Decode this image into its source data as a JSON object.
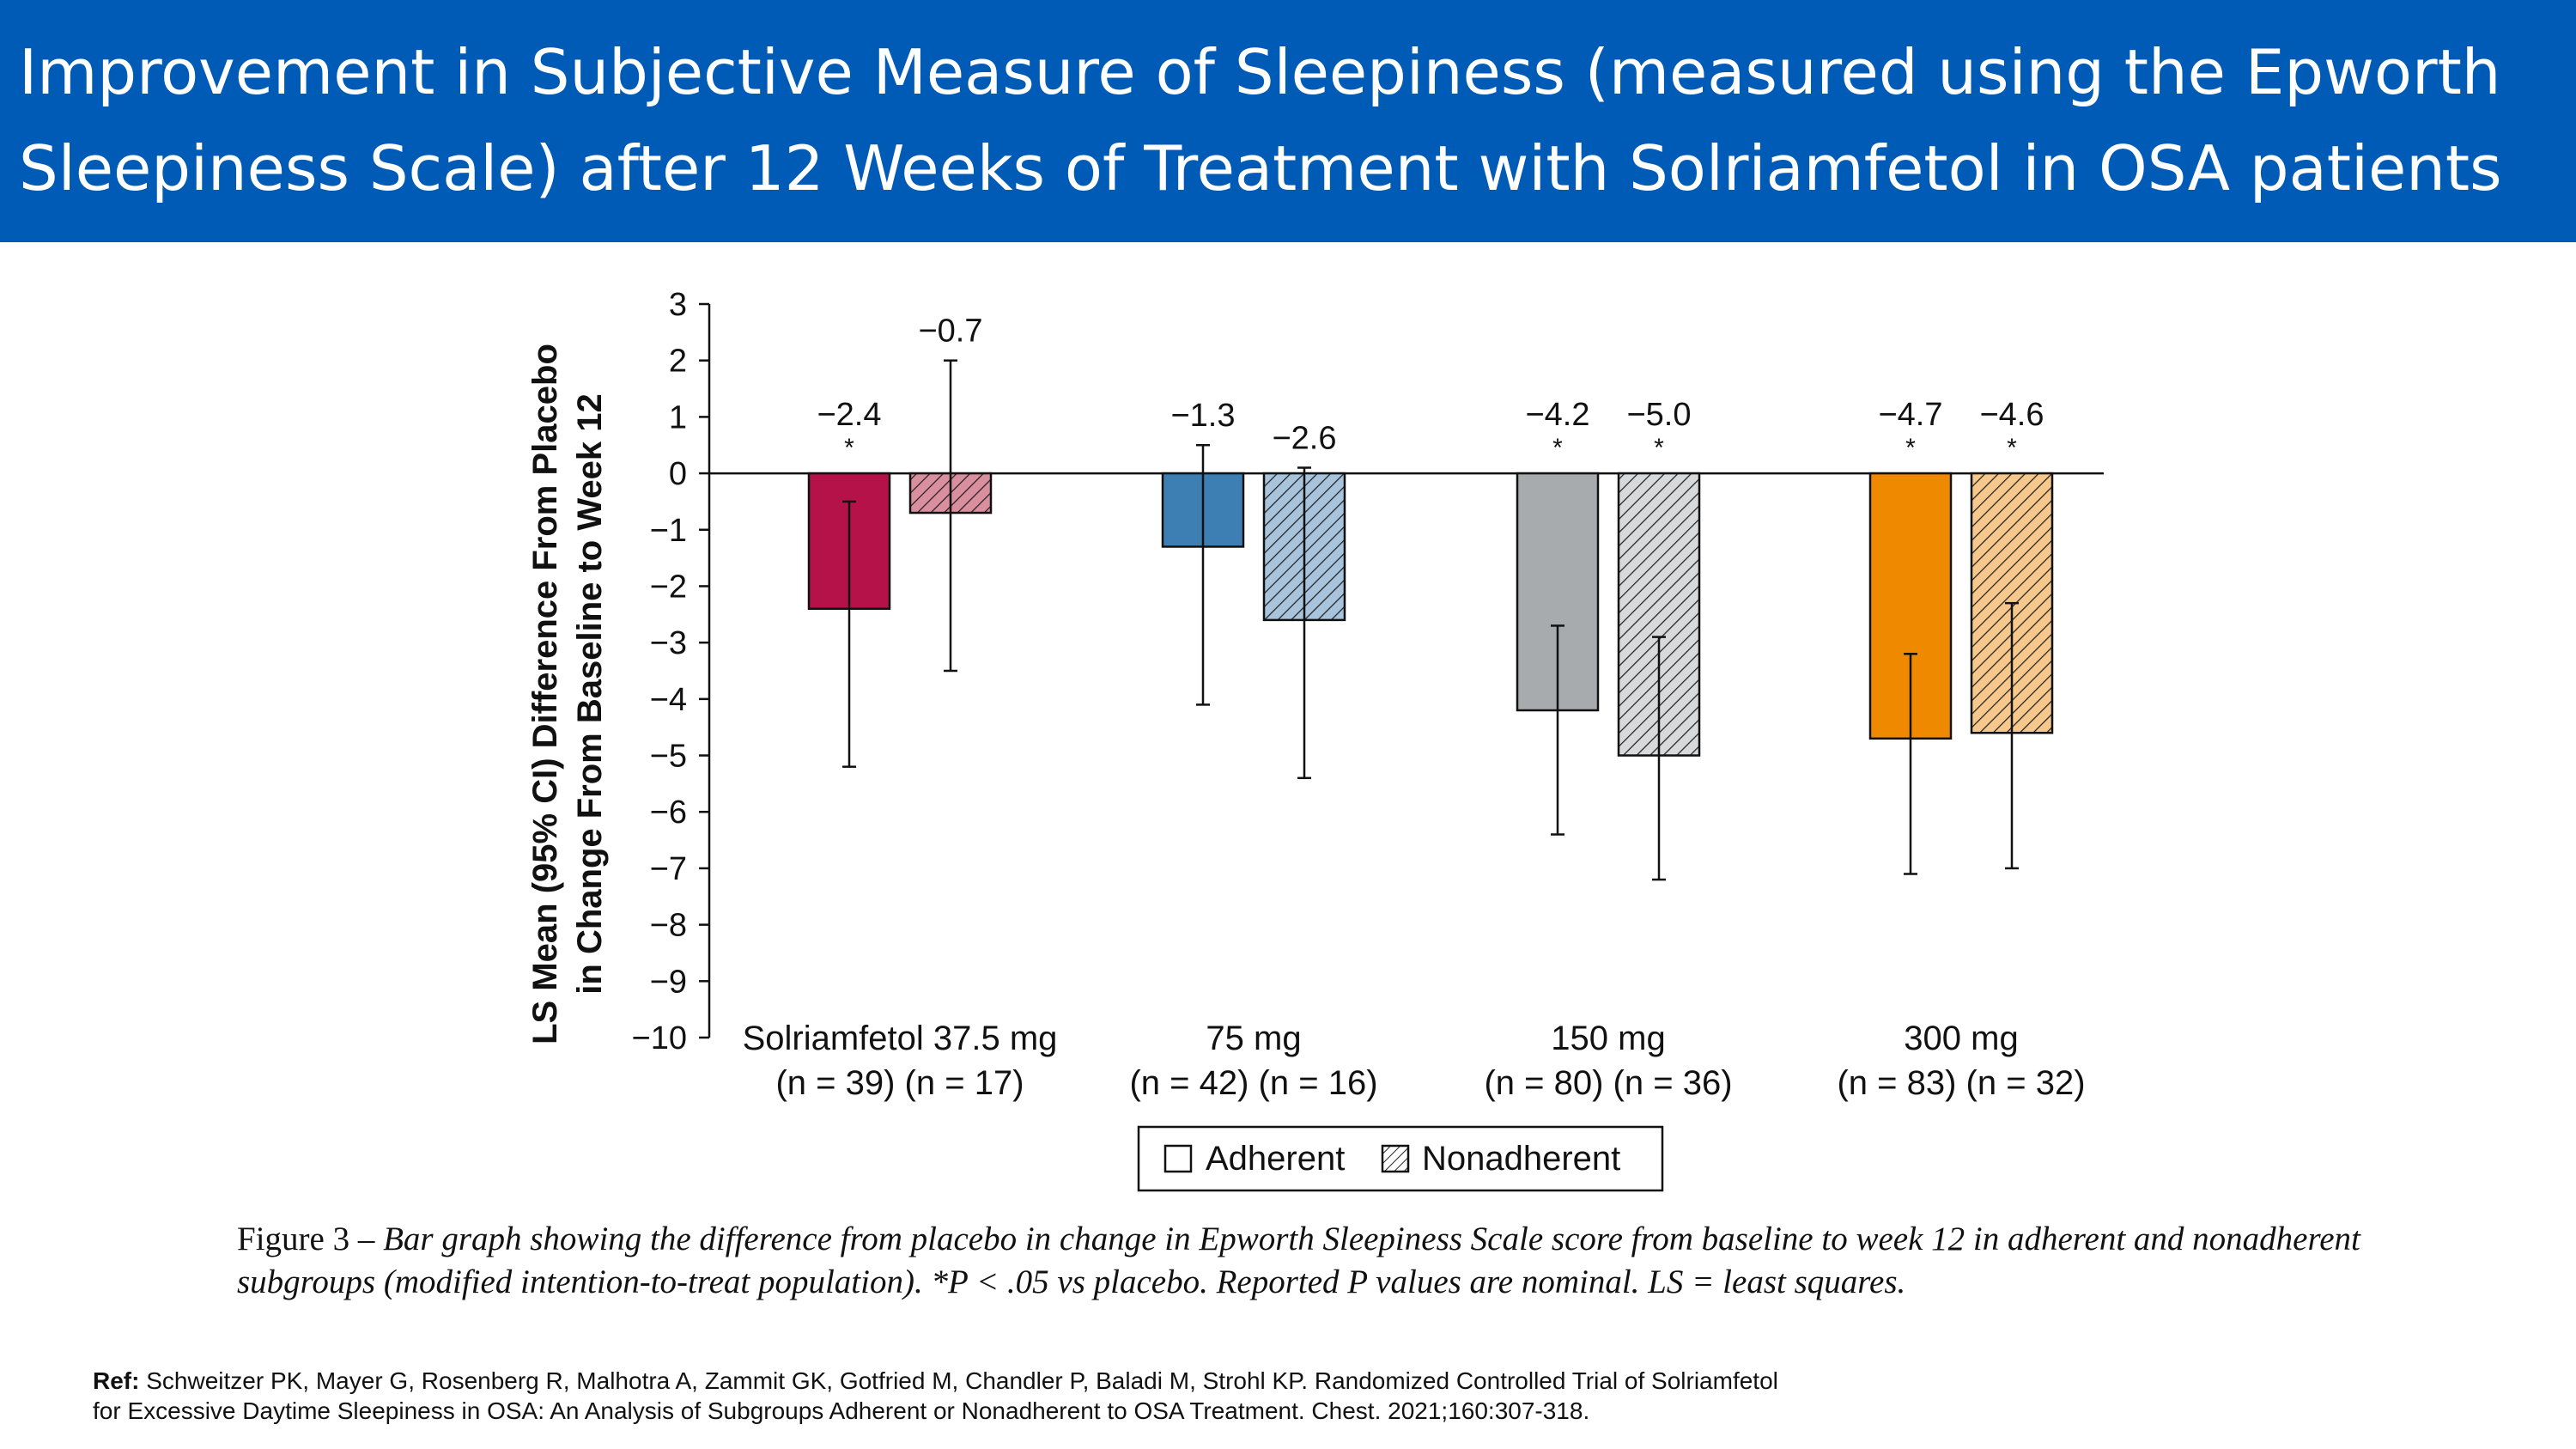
{
  "slide": {
    "title_line1": "Improvement in Subjective Measure of Sleepiness (measured using the Epworth",
    "title_line2": "Sleepiness Scale) after 12 Weeks of Treatment with Solriamfetol in OSA patients",
    "caption_prefix": "Figure 3 – ",
    "caption_text": "Bar graph showing the difference from placebo in change in Epworth Sleepiness Scale score from baseline to week 12 in adherent and nonadherent subgroups (modified intention-to-treat population). *P < .05 vs placebo. Reported P values are nominal. LS = least squares.",
    "ref_label": "Ref:",
    "ref_line1": "Schweitzer PK, Mayer G, Rosenberg R, Malhotra A, Zammit GK, Gotfried M, Chandler P, Baladi M, Strohl KP. Randomized Controlled Trial of Solriamfetol",
    "ref_line2": "for Excessive Daytime Sleepiness in OSA: An Analysis of Subgroups Adherent or Nonadherent to OSA Treatment. Chest. 2021;160:307-318.",
    "colors": {
      "title_bg": "#005bb7",
      "title_text": "#ffffff"
    }
  },
  "chart_data": {
    "type": "bar",
    "ylabel_line1": "LS Mean (95% CI) Difference From Placebo",
    "ylabel_line2": "in Change From Baseline to Week 12",
    "ylim": [
      -10,
      3
    ],
    "yticks": [
      "3",
      "2",
      "1",
      "0",
      "−1",
      "−2",
      "−3",
      "−4",
      "−5",
      "−6",
      "−7",
      "−8",
      "−9",
      "−10"
    ],
    "ytick_values": [
      3,
      2,
      1,
      0,
      -1,
      -2,
      -3,
      -4,
      -5,
      -6,
      -7,
      -8,
      -9,
      -10
    ],
    "significance_marker": "*",
    "legend": {
      "position": "bottom-center",
      "adherent": "Adherent",
      "nonadherent": "Nonadherent"
    },
    "groups": [
      {
        "label": "Solriamfetol 37.5 mg",
        "n_label": "(n = 39) (n = 17)",
        "color": "#b5124a",
        "hatch_color": "#d98f9e",
        "adherent": {
          "value": -2.4,
          "label": "−2.4",
          "ci": [
            -5.2,
            -0.5
          ],
          "significant": true
        },
        "nonadherent": {
          "value": -0.7,
          "label": "−0.7",
          "ci": [
            -3.5,
            2.0
          ],
          "significant": false
        }
      },
      {
        "label": "75 mg",
        "n_label": "(n = 42) (n = 16)",
        "color": "#3d7fb3",
        "hatch_color": "#a8c3dc",
        "adherent": {
          "value": -1.3,
          "label": "−1.3",
          "ci": [
            -4.1,
            0.5
          ],
          "significant": false
        },
        "nonadherent": {
          "value": -2.6,
          "label": "−2.6",
          "ci": [
            -5.4,
            0.1
          ],
          "significant": false
        }
      },
      {
        "label": "150 mg",
        "n_label": "(n = 80) (n = 36)",
        "color": "#a8abad",
        "hatch_color": "#d8d9db",
        "adherent": {
          "value": -4.2,
          "label": "−4.2",
          "ci": [
            -6.4,
            -2.7
          ],
          "significant": true
        },
        "nonadherent": {
          "value": -5.0,
          "label": "−5.0",
          "ci": [
            -7.2,
            -2.9
          ],
          "significant": true
        }
      },
      {
        "label": "300 mg",
        "n_label": "(n = 83) (n = 32)",
        "color": "#ef8a00",
        "hatch_color": "#f6c88b",
        "adherent": {
          "value": -4.7,
          "label": "−4.7",
          "ci": [
            -7.1,
            -3.2
          ],
          "significant": true
        },
        "nonadherent": {
          "value": -4.6,
          "label": "−4.6",
          "ci": [
            -7.0,
            -2.3
          ],
          "significant": true
        }
      }
    ]
  }
}
